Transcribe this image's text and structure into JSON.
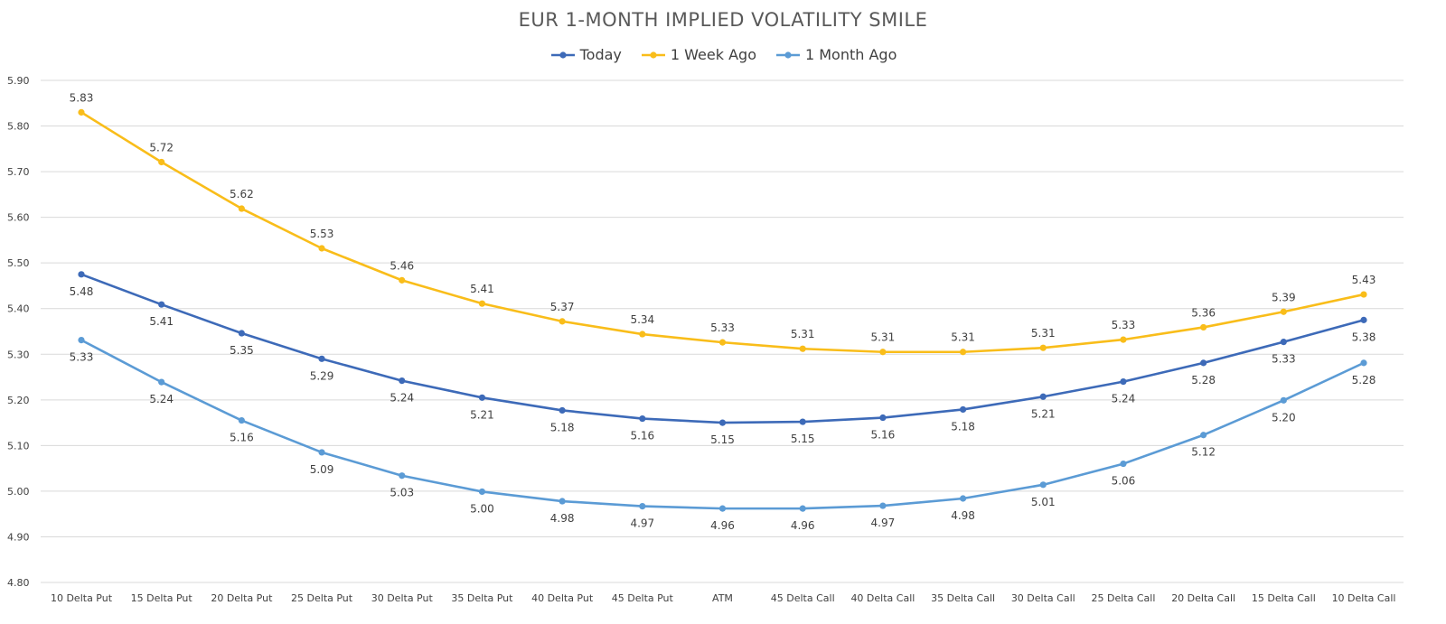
{
  "chart_data": {
    "type": "line",
    "title": "EUR 1-MONTH IMPLIED VOLATILITY SMILE",
    "xlabel": "",
    "ylabel": "",
    "ylim": [
      4.8,
      5.9
    ],
    "ytick_step": 0.1,
    "grid": true,
    "legend_position": "top-center",
    "categories": [
      "10 Delta Put",
      "15 Delta Put",
      "20 Delta Put",
      "25 Delta Put",
      "30 Delta Put",
      "35 Delta Put",
      "40 Delta Put",
      "45 Delta Put",
      "ATM",
      "45 Delta Call",
      "40 Delta Call",
      "35 Delta Call",
      "30 Delta Call",
      "25 Delta Call",
      "20 Delta Call",
      "15 Delta Call",
      "10 Delta Call"
    ],
    "series": [
      {
        "name": "Today",
        "color": "#3D6AB8",
        "label_position": "below",
        "values": [
          5.475,
          5.409,
          5.346,
          5.29,
          5.242,
          5.205,
          5.177,
          5.159,
          5.15,
          5.152,
          5.161,
          5.179,
          5.207,
          5.24,
          5.281,
          5.327,
          5.375
        ],
        "labels": [
          "5.48",
          "5.41",
          "5.35",
          "5.29",
          "5.24",
          "5.21",
          "5.18",
          "5.16",
          "5.15",
          "5.15",
          "5.16",
          "5.18",
          "5.21",
          "5.24",
          "5.28",
          "5.33",
          "5.38"
        ]
      },
      {
        "name": "1 Week Ago",
        "color": "#F9BD1A",
        "label_position": "above",
        "values": [
          5.83,
          5.721,
          5.619,
          5.532,
          5.462,
          5.411,
          5.372,
          5.344,
          5.326,
          5.312,
          5.305,
          5.305,
          5.314,
          5.332,
          5.359,
          5.393,
          5.431
        ],
        "labels": [
          "5.83",
          "5.72",
          "5.62",
          "5.53",
          "5.46",
          "5.41",
          "5.37",
          "5.34",
          "5.33",
          "5.31",
          "5.31",
          "5.31",
          "5.31",
          "5.33",
          "5.36",
          "5.39",
          "5.43"
        ]
      },
      {
        "name": "1 Month Ago",
        "color": "#5B9BD5",
        "label_position": "below",
        "values": [
          5.331,
          5.239,
          5.155,
          5.085,
          5.034,
          4.999,
          4.978,
          4.967,
          4.962,
          4.962,
          4.968,
          4.984,
          5.014,
          5.06,
          5.123,
          5.199,
          5.281
        ],
        "labels": [
          "5.33",
          "5.24",
          "5.16",
          "5.09",
          "5.03",
          "5.00",
          "4.98",
          "4.97",
          "4.96",
          "4.96",
          "4.97",
          "4.98",
          "5.01",
          "5.06",
          "5.12",
          "5.20",
          "5.28"
        ]
      }
    ]
  }
}
